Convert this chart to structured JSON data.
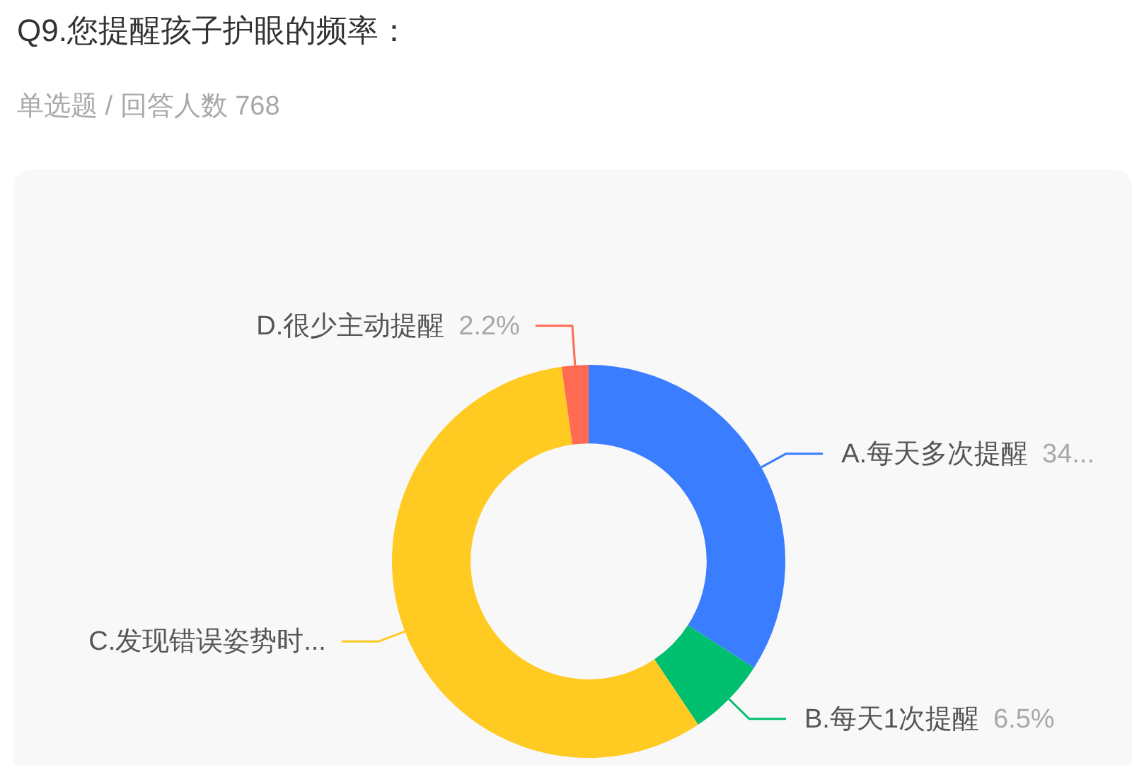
{
  "chart_data": {
    "type": "donut",
    "title": "Q9.您提醒孩子护眼的频率：",
    "subtitle": "单选题 / 回答人数 768",
    "categories": [
      "A.每天多次提醒",
      "B.每天1次提醒",
      "C.发现错误姿势时...",
      "D.很少主动提醒"
    ],
    "values": [
      34.1,
      6.5,
      57.2,
      2.2
    ],
    "colors": [
      "#3b7dff",
      "#00bf6f",
      "#ffca22",
      "#ff6a52"
    ],
    "value_labels": [
      "34...",
      "6.5%",
      null,
      "2.2%"
    ]
  }
}
